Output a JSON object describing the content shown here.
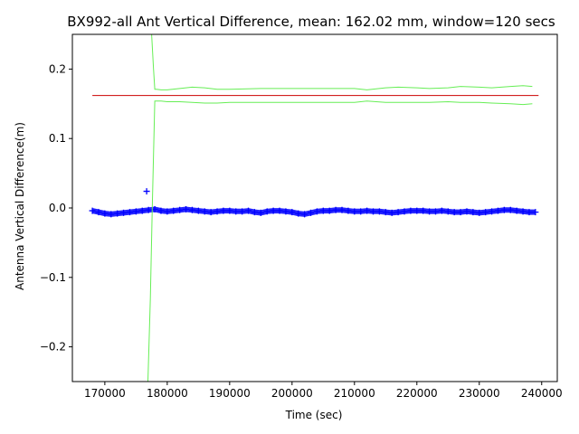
{
  "chart_data": {
    "type": "line",
    "title": "BX992-all Ant Vertical Difference, mean: 162.02 mm, window=120 secs",
    "xlabel": "Time (sec)",
    "ylabel": "Antenna Vertical Difference(m)",
    "xlim": [
      164800,
      242500
    ],
    "ylim": [
      -0.25,
      0.25
    ],
    "x_ticks": [
      170000,
      180000,
      190000,
      200000,
      210000,
      220000,
      230000,
      240000
    ],
    "x_tick_labels": [
      "170000",
      "180000",
      "190000",
      "200000",
      "210000",
      "220000",
      "230000",
      "240000"
    ],
    "y_ticks": [
      -0.2,
      -0.1,
      0.0,
      0.1,
      0.2
    ],
    "y_tick_labels": [
      "−0.2",
      "−0.1",
      "0.0",
      "0.1",
      "0.2"
    ],
    "grid": false,
    "series": [
      {
        "kind": "markers",
        "color": "#0000ff",
        "marker": "+",
        "x": [
          168000,
          169000,
          170000,
          171000,
          172000,
          173000,
          174000,
          175000,
          176000,
          177000,
          178000,
          179000,
          180000,
          181000,
          182000,
          183000,
          184000,
          185000,
          186000,
          187000,
          188000,
          189000,
          190000,
          191000,
          192000,
          193000,
          194000,
          195000,
          196000,
          197000,
          198000,
          199000,
          200000,
          201000,
          202000,
          203000,
          204000,
          205000,
          206000,
          207000,
          208000,
          209000,
          210000,
          211000,
          212000,
          213000,
          214000,
          215000,
          216000,
          217000,
          218000,
          219000,
          220000,
          221000,
          222000,
          223000,
          224000,
          225000,
          226000,
          227000,
          228000,
          229000,
          230000,
          231000,
          232000,
          233000,
          234000,
          235000,
          236000,
          237000,
          238000,
          239000
        ],
        "y": [
          -0.004,
          -0.006,
          -0.008,
          -0.009,
          -0.008,
          -0.007,
          -0.006,
          -0.005,
          -0.004,
          -0.003,
          -0.002,
          -0.004,
          -0.005,
          -0.004,
          -0.003,
          -0.002,
          -0.003,
          -0.004,
          -0.005,
          -0.006,
          -0.005,
          -0.004,
          -0.004,
          -0.005,
          -0.005,
          -0.004,
          -0.006,
          -0.007,
          -0.005,
          -0.004,
          -0.004,
          -0.005,
          -0.006,
          -0.008,
          -0.009,
          -0.007,
          -0.005,
          -0.004,
          -0.004,
          -0.003,
          -0.003,
          -0.004,
          -0.005,
          -0.005,
          -0.004,
          -0.005,
          -0.005,
          -0.006,
          -0.007,
          -0.006,
          -0.005,
          -0.004,
          -0.004,
          -0.004,
          -0.005,
          -0.005,
          -0.004,
          -0.005,
          -0.006,
          -0.006,
          -0.005,
          -0.006,
          -0.007,
          -0.006,
          -0.005,
          -0.004,
          -0.003,
          -0.003,
          -0.004,
          -0.005,
          -0.006,
          -0.006
        ]
      },
      {
        "kind": "markers",
        "color": "#0000ff",
        "marker": "+",
        "x": [
          176700
        ],
        "y": [
          0.024
        ]
      },
      {
        "kind": "line",
        "color": "#cc0000",
        "x": [
          168000,
          239500
        ],
        "y": [
          0.162,
          0.162
        ]
      },
      {
        "kind": "line",
        "color": "#66ee55",
        "x": [
          176900,
          177300,
          177600,
          178000,
          178300,
          179000,
          180000,
          182000,
          184000,
          186000,
          188000,
          190000,
          195000,
          200000,
          205000,
          210000,
          212000,
          215000,
          217000,
          220000,
          222000,
          225000,
          227000,
          230000,
          232000,
          235000,
          237000,
          238500
        ],
        "y": [
          -0.25,
          -0.13,
          0.0,
          0.154,
          0.154,
          0.154,
          0.153,
          0.153,
          0.152,
          0.151,
          0.151,
          0.152,
          0.152,
          0.152,
          0.152,
          0.152,
          0.154,
          0.152,
          0.152,
          0.152,
          0.152,
          0.153,
          0.152,
          0.152,
          0.151,
          0.15,
          0.149,
          0.15
        ]
      },
      {
        "kind": "line",
        "color": "#66ee55",
        "x": [
          177500,
          177800,
          178000,
          178300,
          179000,
          180000,
          182000,
          184000,
          186000,
          188000,
          190000,
          195000,
          200000,
          205000,
          210000,
          212000,
          215000,
          217000,
          220000,
          222000,
          225000,
          227000,
          230000,
          232000,
          235000,
          237000,
          238500
        ],
        "y": [
          0.25,
          0.2,
          0.171,
          0.171,
          0.17,
          0.17,
          0.172,
          0.174,
          0.173,
          0.171,
          0.171,
          0.172,
          0.172,
          0.172,
          0.172,
          0.17,
          0.173,
          0.174,
          0.173,
          0.172,
          0.173,
          0.175,
          0.174,
          0.173,
          0.175,
          0.176,
          0.175
        ]
      }
    ]
  }
}
